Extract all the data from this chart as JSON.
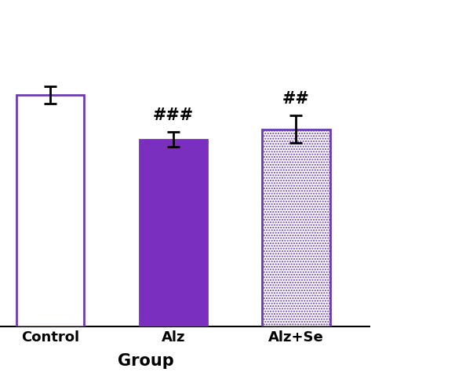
{
  "categories": [
    "Control",
    "Alz",
    "Alz+Se"
  ],
  "values": [
    0.68,
    0.55,
    0.58
  ],
  "errors": [
    0.025,
    0.022,
    0.04
  ],
  "bar_colors": [
    "white",
    "#7B2FBE",
    "white"
  ],
  "bar_edgecolors": [
    "#6A3BB5",
    "#7B2FBE",
    "#6A3BB5"
  ],
  "annotations": [
    "",
    "###",
    "##"
  ],
  "annotation_fontsize": 15,
  "xlabel": "Group",
  "xlabel_fontsize": 15,
  "ylim": [
    0,
    0.95
  ],
  "bar_width": 0.55,
  "figsize": [
    5.8,
    4.74
  ],
  "dpi": 100,
  "edgewidth": 2.0,
  "capsize": 6,
  "hatch_pattern": ".....",
  "bar_edgecolor_hatch": "#6A3BB5"
}
